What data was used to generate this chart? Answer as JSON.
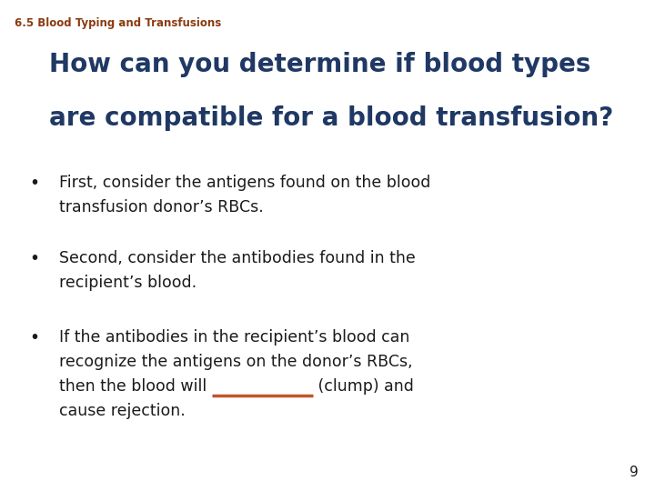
{
  "background_color": "#ffffff",
  "header_text": "6.5 Blood Typing and Transfusions",
  "header_color": "#8B3A10",
  "header_fontsize": 8.5,
  "title_line1": "How can you determine if blood types",
  "title_line2": "are compatible for a blood transfusion?",
  "title_color": "#1F3864",
  "title_fontsize": 20,
  "bullet_color": "#1a1a1a",
  "bullet_fontsize": 12.5,
  "bullet1_line1": "First, consider the antigens found on the blood",
  "bullet1_line2": "transfusion donor’s RBCs.",
  "bullet2_line1": "Second, consider the antibodies found in the",
  "bullet2_line2": "recipient’s blood.",
  "bullet3_line1": "If the antibodies in the recipient’s blood can",
  "bullet3_line2": "recognize the antigens on the donor’s RBCs,",
  "bullet3_line3_before": "then the blood will ",
  "bullet3_line3_after": " (clump) and",
  "bullet3_line4": "cause rejection.",
  "underline_color": "#C0552A",
  "page_number": "9",
  "page_number_color": "#1a1a1a",
  "page_number_fontsize": 11
}
